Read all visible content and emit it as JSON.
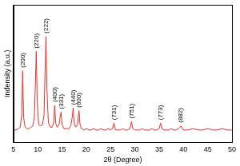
{
  "chart_data": {
    "type": "line",
    "x_label": "2θ (Degree)",
    "y_label": "Indensity (a.u.)",
    "x": [
      5,
      5.5,
      6,
      6.4,
      6.7,
      6.9,
      7.1,
      7.4,
      7.8,
      8.2,
      8.6,
      9.0,
      9.3,
      9.5,
      9.7,
      9.9,
      10.2,
      10.6,
      11.0,
      11.3,
      11.5,
      11.7,
      11.9,
      12.2,
      12.6,
      13.0,
      13.3,
      13.5,
      13.7,
      14.0,
      14.4,
      14.6,
      14.8,
      15.0,
      15.4,
      15.9,
      16.4,
      16.8,
      17.1,
      17.3,
      17.5,
      17.8,
      18.2,
      18.5,
      18.7,
      19.0,
      19.5,
      20,
      20.5,
      21,
      21.5,
      22,
      22.5,
      23,
      23.5,
      24,
      24.5,
      25,
      25.4,
      25.7,
      26,
      26.5,
      27,
      27.5,
      28,
      28.5,
      29,
      29.3,
      29.6,
      30,
      30.5,
      31,
      31.5,
      32,
      32.5,
      33,
      33.5,
      34,
      34.5,
      35,
      35.3,
      35.6,
      36,
      36.5,
      37,
      37.5,
      38,
      38.5,
      39,
      39.5,
      40,
      40.5,
      41,
      42,
      43,
      44,
      45,
      46,
      47,
      48,
      49,
      50
    ],
    "values": [
      9,
      9,
      10,
      11,
      20,
      52,
      18,
      11,
      10,
      10,
      11,
      12,
      18,
      40,
      66,
      30,
      13,
      12,
      13,
      20,
      50,
      77,
      38,
      14,
      11,
      11,
      15,
      27,
      14,
      11,
      13,
      18,
      22,
      13,
      10,
      10,
      10,
      12,
      18,
      25,
      14,
      11,
      13,
      23,
      13,
      10,
      9,
      10,
      9,
      9,
      10,
      9,
      9,
      10,
      9,
      9,
      10,
      9,
      10,
      14,
      9,
      9,
      9,
      10,
      9,
      9,
      10,
      15,
      10,
      9,
      9,
      9,
      10,
      9,
      9,
      9,
      10,
      9,
      9,
      10,
      14,
      10,
      9,
      9,
      9,
      10,
      9,
      9,
      10,
      12,
      9,
      9,
      9,
      10,
      9,
      9,
      10,
      9,
      9,
      10,
      9,
      9
    ],
    "color": "#e8302a",
    "xlim": [
      5,
      50
    ],
    "xticks": [
      5,
      10,
      15,
      20,
      25,
      30,
      35,
      40,
      45,
      50
    ],
    "ylim": [
      0,
      100
    ],
    "tick_labels": "x",
    "grid": false,
    "annotations": [
      {
        "text": "(200)",
        "x": 6.9,
        "y": 52
      },
      {
        "text": "(220)",
        "x": 9.7,
        "y": 66
      },
      {
        "text": "(222)",
        "x": 11.7,
        "y": 77
      },
      {
        "text": "(400)",
        "x": 13.5,
        "y": 27
      },
      {
        "text": "(331)",
        "x": 14.8,
        "y": 22
      },
      {
        "text": "(440)",
        "x": 17.3,
        "y": 25
      },
      {
        "text": "(600)",
        "x": 18.5,
        "y": 23
      },
      {
        "text": "(731)",
        "x": 25.7,
        "y": 14
      },
      {
        "text": "(751)",
        "x": 29.3,
        "y": 15
      },
      {
        "text": "(773)",
        "x": 35.3,
        "y": 14
      },
      {
        "text": "(882)",
        "x": 39.5,
        "y": 12
      }
    ]
  }
}
